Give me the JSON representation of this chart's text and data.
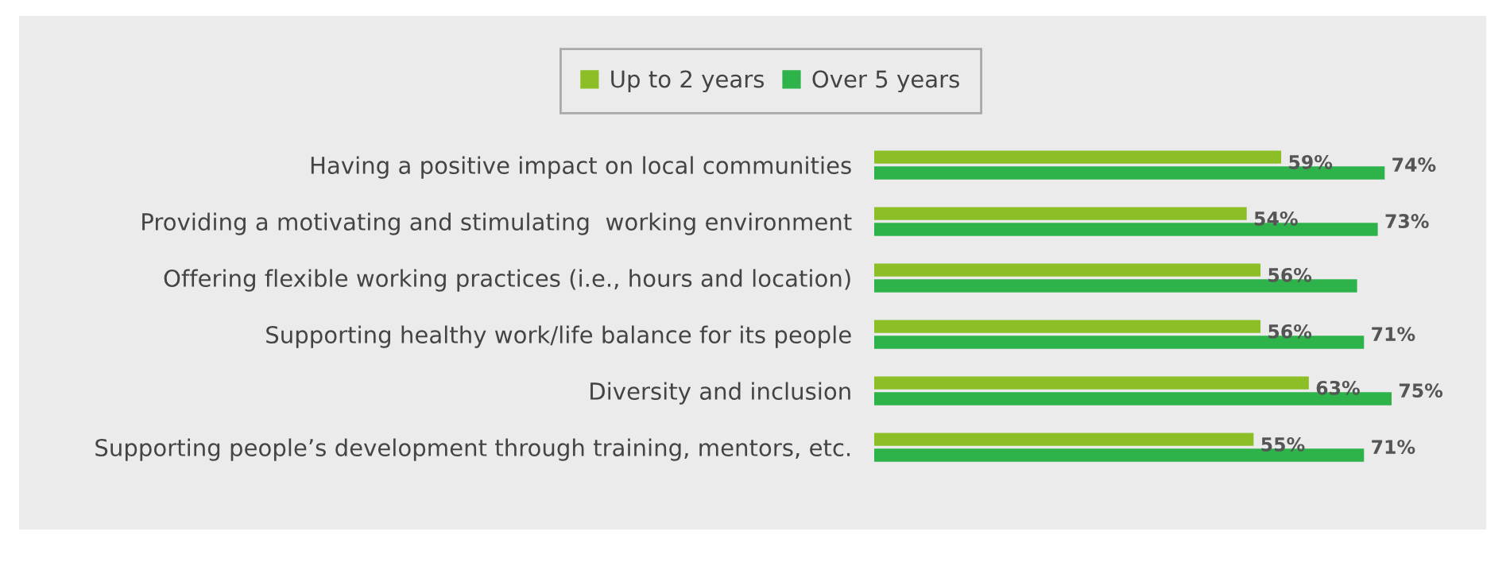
{
  "chart_data": {
    "type": "bar",
    "orientation": "horizontal",
    "categories": [
      "Having a positive impact on local communities",
      "Providing a motivating and stimulating  working environment",
      "Offering flexible working practices (i.e., hours and location)",
      "Supporting healthy work/life balance for its people",
      "Diversity and inclusion",
      "Supporting people’s development through training, mentors, etc."
    ],
    "series": [
      {
        "name": "Up to 2 years",
        "color": "#8cbf26",
        "values": [
          59,
          54,
          56,
          56,
          63,
          55
        ],
        "value_labels": [
          "59%",
          "54%",
          "56%",
          "56%",
          "63%",
          "55%"
        ]
      },
      {
        "name": "Over 5 years",
        "color": "#2db34a",
        "values": [
          74,
          73,
          70,
          71,
          75,
          71
        ],
        "value_labels": [
          "74%",
          "73%",
          null,
          "71%",
          "75%",
          "71%"
        ]
      }
    ],
    "legend": "top",
    "grid": false
  }
}
